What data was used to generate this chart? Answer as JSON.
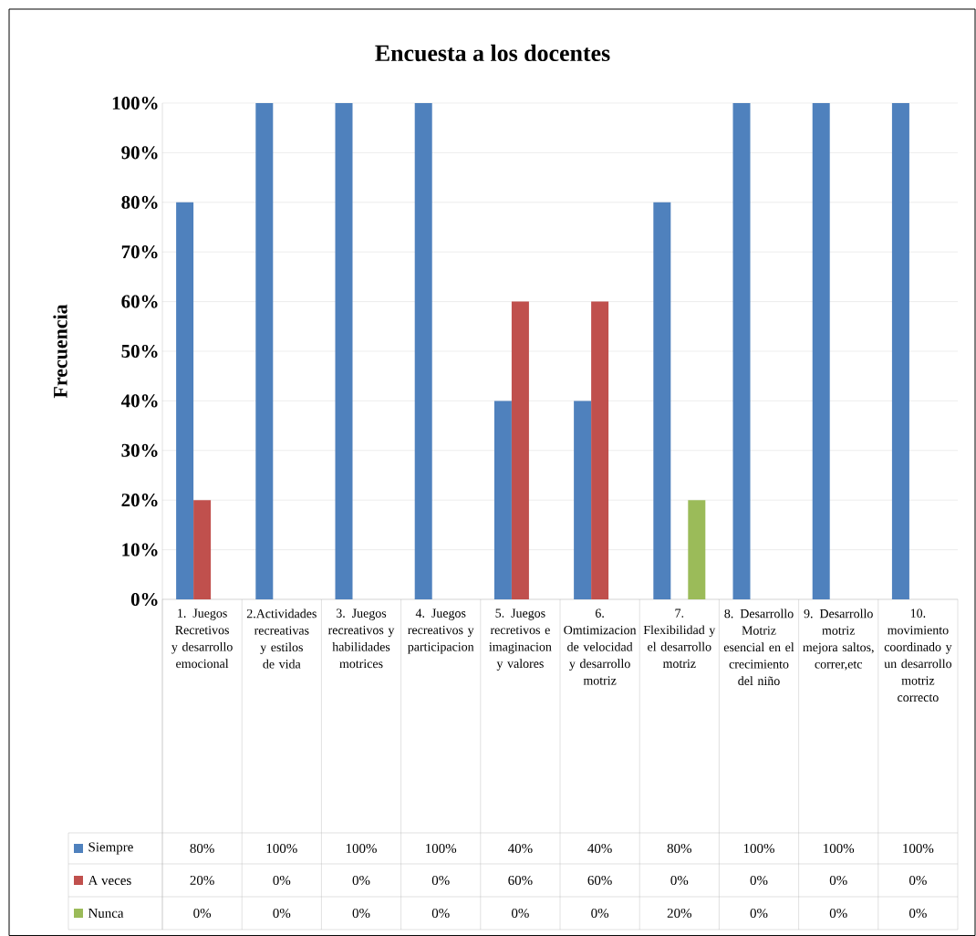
{
  "chart_data": {
    "type": "bar",
    "title": "Encuesta a los docentes",
    "ylabel": "Frecuencia",
    "categories": [
      "1. Juegos Recretivos y desarrollo emocional",
      "2.Actividades recreativas y estilos de vida",
      "3. Juegos recreativos y habilidades motrices",
      "4. Juegos recreativos y participacion",
      "5. Juegos recretivos e imaginacion y valores",
      "6. Omtimizacion de velocidad y desarrollo motriz",
      "7. Flexibilidad y el desarrollo motriz",
      "8. Desarrollo Motriz esencial en el crecimiento del niño",
      "9. Desarrollo motriz mejora saltos, correr,etc",
      "10. movimiento coordinado y un desarrollo motriz correcto"
    ],
    "series": [
      {
        "name": "Siempre",
        "color": "#4f81bd",
        "values": [
          80,
          100,
          100,
          100,
          40,
          40,
          80,
          100,
          100,
          100
        ],
        "value_labels": [
          "80%",
          "100%",
          "100%",
          "100%",
          "40%",
          "40%",
          "80%",
          "100%",
          "100%",
          "100%"
        ]
      },
      {
        "name": "A veces",
        "color": "#c0504d",
        "values": [
          20,
          0,
          0,
          0,
          60,
          60,
          0,
          0,
          0,
          0
        ],
        "value_labels": [
          "20%",
          "0%",
          "0%",
          "0%",
          "60%",
          "60%",
          "0%",
          "0%",
          "0%",
          "0%"
        ]
      },
      {
        "name": "Nunca",
        "color": "#9bbb59",
        "values": [
          0,
          0,
          0,
          0,
          0,
          0,
          20,
          0,
          0,
          0
        ],
        "value_labels": [
          "0%",
          "0%",
          "0%",
          "0%",
          "0%",
          "0%",
          "20%",
          "0%",
          "0%",
          "0%"
        ]
      }
    ],
    "ylim": [
      0,
      100
    ],
    "yticks": [
      {
        "value": 0,
        "label": "0%"
      },
      {
        "value": 10,
        "label": "10%"
      },
      {
        "value": 20,
        "label": "20%"
      },
      {
        "value": 30,
        "label": "30%"
      },
      {
        "value": 40,
        "label": "40%"
      },
      {
        "value": 50,
        "label": "50%"
      },
      {
        "value": 60,
        "label": "60%"
      },
      {
        "value": 70,
        "label": "70%"
      },
      {
        "value": 80,
        "label": "80%"
      },
      {
        "value": 90,
        "label": "90%"
      },
      {
        "value": 100,
        "label": "100%"
      }
    ],
    "grid": "y",
    "legend": "bottom"
  }
}
